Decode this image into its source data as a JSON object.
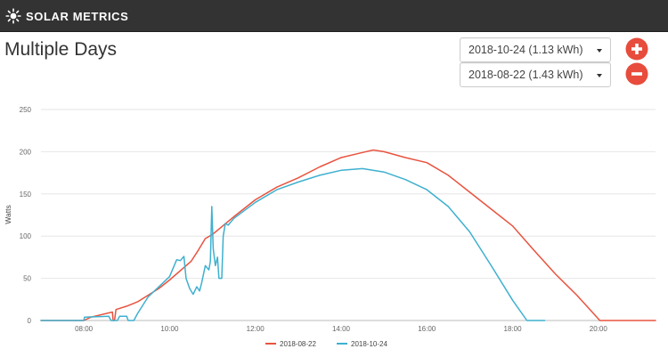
{
  "app": {
    "title": "SOLAR METRICS",
    "logo_icon": "sun-icon"
  },
  "page": {
    "title": "Multiple Days"
  },
  "controls": {
    "selects": [
      {
        "value": "2018-10-24 (1.13 kWh)"
      },
      {
        "value": "2018-08-22 (1.43 kWh)"
      }
    ],
    "add_icon": "plus-circle-icon",
    "remove_icon": "minus-circle-icon",
    "button_color": "#e74c3c"
  },
  "chart_data": {
    "type": "line",
    "ylabel": "Watts",
    "ylim": [
      0,
      250
    ],
    "yticks": [
      0,
      50,
      100,
      150,
      200,
      250
    ],
    "xlim": [
      "07:00",
      "21:20"
    ],
    "xticks": [
      "08:00",
      "10:00",
      "12:00",
      "14:00",
      "16:00",
      "18:00",
      "20:00"
    ],
    "grid": "horizontal",
    "legend_position": "bottom",
    "series": [
      {
        "name": "2018-08-22",
        "color": "#e8533f",
        "points": [
          [
            "07:00",
            0
          ],
          [
            "08:00",
            0
          ],
          [
            "08:10",
            4
          ],
          [
            "08:40",
            10
          ],
          [
            "08:41",
            0
          ],
          [
            "08:43",
            0
          ],
          [
            "08:45",
            13
          ],
          [
            "09:00",
            17
          ],
          [
            "09:15",
            22
          ],
          [
            "09:30",
            30
          ],
          [
            "09:45",
            38
          ],
          [
            "10:00",
            48
          ],
          [
            "10:30",
            70
          ],
          [
            "10:40",
            83
          ],
          [
            "10:50",
            97
          ],
          [
            "11:00",
            102
          ],
          [
            "11:30",
            123
          ],
          [
            "12:00",
            143
          ],
          [
            "12:30",
            158
          ],
          [
            "13:00",
            169
          ],
          [
            "13:30",
            182
          ],
          [
            "14:00",
            193
          ],
          [
            "14:30",
            199
          ],
          [
            "14:45",
            202
          ],
          [
            "15:00",
            200
          ],
          [
            "15:30",
            193
          ],
          [
            "16:00",
            187
          ],
          [
            "16:30",
            172
          ],
          [
            "17:00",
            152
          ],
          [
            "17:30",
            132
          ],
          [
            "18:00",
            112
          ],
          [
            "18:30",
            83
          ],
          [
            "19:00",
            55
          ],
          [
            "19:30",
            30
          ],
          [
            "20:00",
            2
          ],
          [
            "20:02",
            0
          ],
          [
            "21:20",
            0
          ]
        ]
      },
      {
        "name": "2018-10-24",
        "color": "#3fb0cf",
        "points": [
          [
            "07:00",
            0
          ],
          [
            "08:00",
            0
          ],
          [
            "08:01",
            4
          ],
          [
            "08:35",
            5
          ],
          [
            "08:38",
            0
          ],
          [
            "08:47",
            0
          ],
          [
            "08:50",
            5
          ],
          [
            "09:00",
            5
          ],
          [
            "09:02",
            0
          ],
          [
            "09:10",
            0
          ],
          [
            "09:15",
            8
          ],
          [
            "09:30",
            28
          ],
          [
            "09:45",
            40
          ],
          [
            "10:00",
            52
          ],
          [
            "10:10",
            72
          ],
          [
            "10:15",
            71
          ],
          [
            "10:20",
            76
          ],
          [
            "10:23",
            50
          ],
          [
            "10:28",
            38
          ],
          [
            "10:33",
            31
          ],
          [
            "10:38",
            40
          ],
          [
            "10:42",
            35
          ],
          [
            "10:45",
            45
          ],
          [
            "10:50",
            65
          ],
          [
            "10:55",
            60
          ],
          [
            "10:57",
            70
          ],
          [
            "10:59",
            135
          ],
          [
            "11:01",
            85
          ],
          [
            "11:04",
            65
          ],
          [
            "11:07",
            75
          ],
          [
            "11:09",
            50
          ],
          [
            "11:13",
            50
          ],
          [
            "11:15",
            100
          ],
          [
            "11:18",
            115
          ],
          [
            "11:22",
            113
          ],
          [
            "11:30",
            121
          ],
          [
            "12:00",
            140
          ],
          [
            "12:30",
            155
          ],
          [
            "13:00",
            164
          ],
          [
            "13:30",
            172
          ],
          [
            "14:00",
            178
          ],
          [
            "14:30",
            180
          ],
          [
            "15:00",
            176
          ],
          [
            "15:30",
            167
          ],
          [
            "16:00",
            155
          ],
          [
            "16:30",
            135
          ],
          [
            "17:00",
            105
          ],
          [
            "17:30",
            65
          ],
          [
            "18:00",
            24
          ],
          [
            "18:20",
            0
          ],
          [
            "18:45",
            0
          ]
        ]
      }
    ]
  }
}
